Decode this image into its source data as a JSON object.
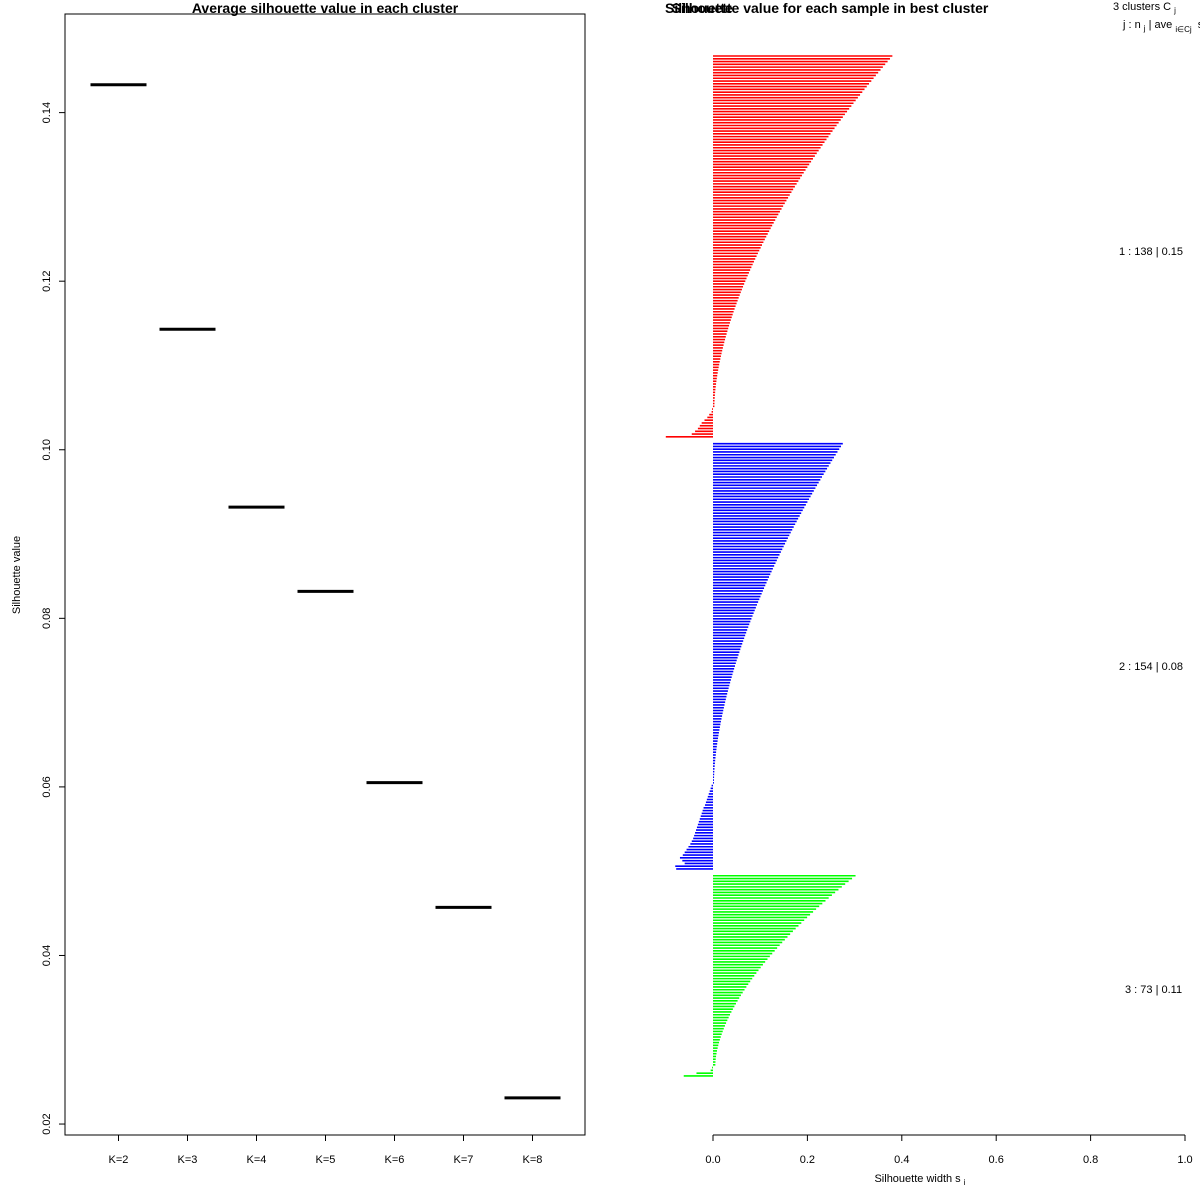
{
  "chart_data": [
    {
      "type": "scatter",
      "marker": "horizontal-segment",
      "title": "Average silhouette value in each cluster",
      "xlabel": "",
      "ylabel": "Silhouette value",
      "categories": [
        "K=2",
        "K=3",
        "K=4",
        "K=5",
        "K=6",
        "K=7",
        "K=8"
      ],
      "values": [
        0.1433,
        0.1143,
        0.0932,
        0.0832,
        0.0605,
        0.0457,
        0.0231
      ],
      "ylim": [
        0.0187,
        0.1517
      ],
      "yticks": [
        0.02,
        0.04,
        0.06,
        0.08,
        0.1,
        0.12,
        0.14
      ],
      "ytick_labels": [
        "0.02",
        "0.04",
        "0.06",
        "0.08",
        "0.10",
        "0.12",
        "0.14"
      ],
      "color": "#000000"
    },
    {
      "type": "bar",
      "orientation": "horizontal",
      "title": "Silhouette value for each sample in best cluster",
      "overlapping_title": "Silhouette",
      "xlabel_main": "Silhouette width s",
      "xlabel_sub": "i",
      "xlim": [
        0.0,
        1.0
      ],
      "xticks": [
        0.0,
        0.2,
        0.4,
        0.6,
        0.8,
        1.0
      ],
      "xtick_labels": [
        "0.0",
        "0.2",
        "0.4",
        "0.6",
        "0.8",
        "1.0"
      ],
      "legend": {
        "header1_main": "3  clusters  C",
        "header1_sub": "j",
        "header2_parts": [
          "j :  n",
          "j",
          "| ave",
          "i∈Cj",
          "s",
          "i"
        ]
      },
      "clusters": [
        {
          "id": 1,
          "n": 138,
          "avg": "0.15",
          "label": "1 :  138  |  0.15",
          "color": "#ff0000",
          "positive_start": 0.38,
          "positive_end": 0.003,
          "positive_count": 127,
          "negative_values": [
            -0.002,
            -0.003,
            -0.008,
            -0.012,
            -0.018,
            -0.024,
            -0.028,
            -0.032,
            -0.038,
            -0.045,
            -0.1
          ]
        },
        {
          "id": 2,
          "n": 154,
          "avg": "0.08",
          "label": "2 :  154  |  0.08",
          "color": "#0000ff",
          "positive_start": 0.275,
          "positive_end": 0.002,
          "positive_count": 123,
          "negative_values": [
            -0.003,
            -0.005,
            -0.007,
            -0.009,
            -0.011,
            -0.013,
            -0.015,
            -0.017,
            -0.02,
            -0.022,
            -0.024,
            -0.026,
            -0.028,
            -0.03,
            -0.032,
            -0.034,
            -0.036,
            -0.038,
            -0.04,
            -0.042,
            -0.045,
            -0.048,
            -0.052,
            -0.056,
            -0.06,
            -0.064,
            -0.07,
            -0.065,
            -0.06,
            -0.08,
            -0.078
          ]
        },
        {
          "id": 3,
          "n": 73,
          "avg": "0.11",
          "label": "3 :  73  |  0.11",
          "color": "#00ff00",
          "positive_start": 0.302,
          "positive_end": 0.005,
          "positive_count": 69,
          "negative_values": [
            -0.002,
            -0.005,
            -0.035,
            -0.062
          ]
        }
      ]
    }
  ]
}
